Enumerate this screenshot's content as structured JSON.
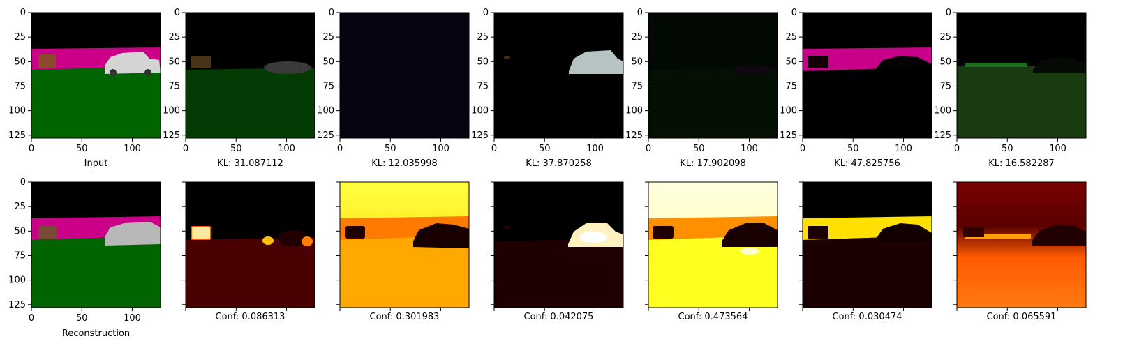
{
  "figure": {
    "background": "#ffffff",
    "panel_count_per_row": 7
  },
  "chart_data": [
    {
      "type": "image-grid-row",
      "row": "top",
      "description_of_content": "rgb image panels with pixel-coordinate axes",
      "x_ticks": [
        0,
        50,
        100
      ],
      "y_ticks": [
        0,
        25,
        50,
        75,
        100,
        125
      ],
      "xlim": [
        0,
        128
      ],
      "ylim": [
        128,
        0
      ],
      "captions": [
        "Input",
        "KL: 31.087112",
        "KL: 12.035998",
        "KL: 37.870258",
        "KL: 17.902098",
        "KL: 47.825756",
        "KL: 16.582287"
      ],
      "kl_values": [
        31.087112,
        12.035998,
        37.870258,
        17.902098,
        47.825756,
        16.582287
      ]
    },
    {
      "type": "image-grid-row",
      "row": "bottom",
      "x_ticks": [
        0,
        50,
        100
      ],
      "y_ticks": [
        0,
        25,
        50,
        75,
        100,
        125
      ],
      "xlim": [
        0,
        128
      ],
      "ylim": [
        128,
        0
      ],
      "captions": [
        "Reconstruction",
        "Conf: 0.086313",
        "Conf: 0.301983",
        "Conf: 0.042075",
        "Conf: 0.473564",
        "Conf: 0.030474",
        "Conf: 0.065591"
      ],
      "conf_values": [
        0.086313,
        0.301983,
        0.042075,
        0.473564,
        0.030474,
        0.065591
      ],
      "colormap": "hot"
    }
  ],
  "palette": {
    "sky": "#000000",
    "wall": "#cc0088",
    "floor": "#006400",
    "box": "#8b4a2e",
    "car": "#d0d0d0",
    "hot_dark": "#2a0000",
    "hot_red": "#b01000",
    "hot_orange": "#ff6a00",
    "hot_yellow": "#ffff30",
    "hot_white": "#ffffd8"
  }
}
